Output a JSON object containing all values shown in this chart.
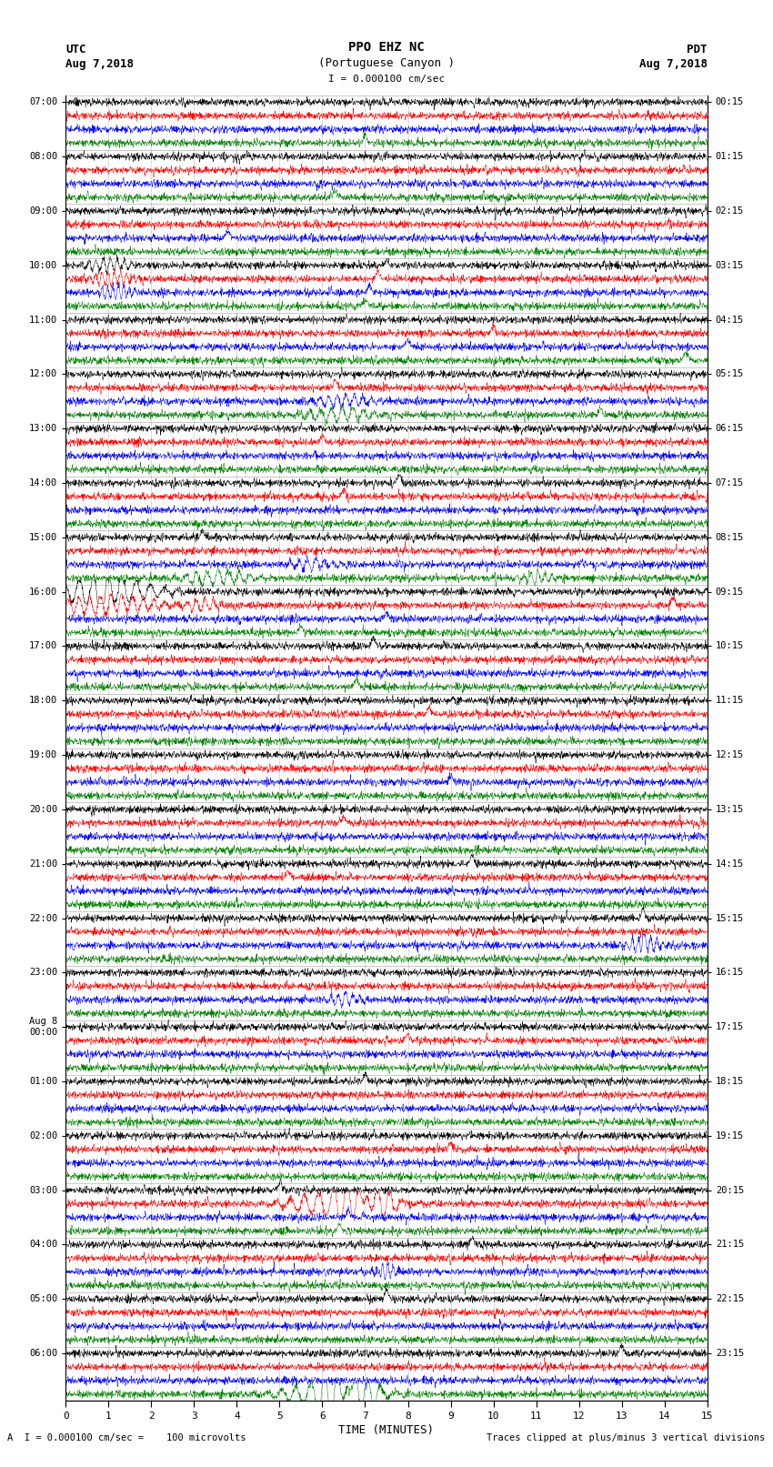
{
  "title_line1": "PPO EHZ NC",
  "title_line2": "(Portuguese Canyon )",
  "title_line3": "I = 0.000100 cm/sec",
  "left_label_line1": "UTC",
  "left_label_line2": "Aug 7,2018",
  "right_label_line1": "PDT",
  "right_label_line2": "Aug 7,2018",
  "xlabel": "TIME (MINUTES)",
  "footer_left": "A  I = 0.000100 cm/sec =    100 microvolts",
  "footer_right": "Traces clipped at plus/minus 3 vertical divisions",
  "xlim": [
    0,
    15
  ],
  "xticks": [
    0,
    1,
    2,
    3,
    4,
    5,
    6,
    7,
    8,
    9,
    10,
    11,
    12,
    13,
    14,
    15
  ],
  "colors": [
    "black",
    "red",
    "blue",
    "green"
  ],
  "bg_color": "white",
  "num_hours": 24,
  "utc_hours": [
    "07:00",
    "08:00",
    "09:00",
    "10:00",
    "11:00",
    "12:00",
    "13:00",
    "14:00",
    "15:00",
    "16:00",
    "17:00",
    "18:00",
    "19:00",
    "20:00",
    "21:00",
    "22:00",
    "23:00",
    "Aug 8\n00:00",
    "01:00",
    "02:00",
    "03:00",
    "04:00",
    "05:00",
    "06:00"
  ],
  "pdt_hours": [
    "00:15",
    "01:15",
    "02:15",
    "03:15",
    "04:15",
    "05:15",
    "06:15",
    "07:15",
    "08:15",
    "09:15",
    "10:15",
    "11:15",
    "12:15",
    "13:15",
    "14:15",
    "15:15",
    "16:15",
    "17:15",
    "18:15",
    "19:15",
    "20:15",
    "21:15",
    "22:15",
    "23:15"
  ],
  "noise_base": 0.25,
  "lw": 0.35
}
